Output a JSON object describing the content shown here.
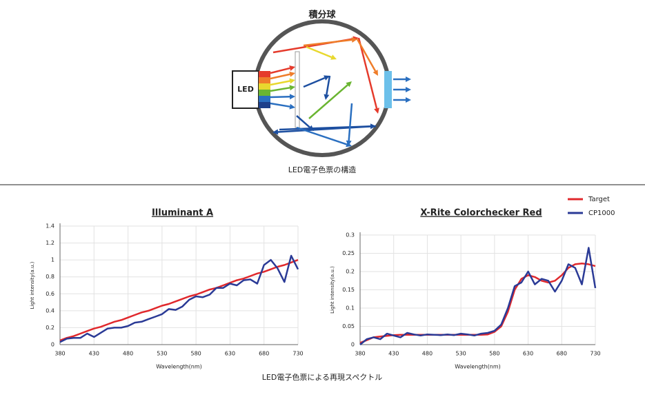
{
  "diagram": {
    "title": "積分球",
    "led_label": "LED",
    "caption": "LED電子色票の構造"
  },
  "caption": "LED電子色票による再現スペクトル",
  "chart_data": [
    {
      "type": "line",
      "title": "Illuminant A",
      "x_label": "Wavelength(nm)",
      "y_label": "Light intensity(a.u.)",
      "x": [
        380,
        390,
        400,
        410,
        420,
        430,
        440,
        450,
        460,
        470,
        480,
        490,
        500,
        510,
        520,
        530,
        540,
        550,
        560,
        570,
        580,
        590,
        600,
        610,
        620,
        630,
        640,
        650,
        660,
        670,
        680,
        690,
        700,
        710,
        720,
        730
      ],
      "series": [
        {
          "name": "Target",
          "color": "#e0282c",
          "values": [
            0.05,
            0.08,
            0.1,
            0.13,
            0.16,
            0.19,
            0.21,
            0.24,
            0.27,
            0.29,
            0.32,
            0.35,
            0.38,
            0.4,
            0.43,
            0.46,
            0.48,
            0.51,
            0.54,
            0.57,
            0.59,
            0.62,
            0.65,
            0.67,
            0.7,
            0.73,
            0.76,
            0.78,
            0.81,
            0.84,
            0.86,
            0.89,
            0.92,
            0.94,
            0.97,
            1.0
          ]
        },
        {
          "name": "CP1000",
          "color": "#2a3a96",
          "values": [
            0.03,
            0.07,
            0.08,
            0.08,
            0.13,
            0.09,
            0.14,
            0.19,
            0.2,
            0.2,
            0.22,
            0.26,
            0.27,
            0.3,
            0.33,
            0.36,
            0.42,
            0.41,
            0.45,
            0.53,
            0.57,
            0.56,
            0.59,
            0.67,
            0.67,
            0.72,
            0.7,
            0.76,
            0.77,
            0.72,
            0.94,
            1.0,
            0.9,
            0.74,
            1.05,
            0.89
          ]
        }
      ],
      "xlim": [
        380,
        730
      ],
      "xticks": [
        380,
        430,
        480,
        530,
        580,
        630,
        680,
        730
      ],
      "ylim": [
        0,
        1.4
      ],
      "yticks": [
        0,
        0.2,
        0.4,
        0.6,
        0.8,
        1,
        1.2,
        1.4
      ],
      "grid": true
    },
    {
      "type": "line",
      "title": "X-Rite Colorchecker Red",
      "x_label": "Wavelength(nm)",
      "y_label": "Light intensity(a.u.)",
      "x": [
        380,
        390,
        400,
        410,
        420,
        430,
        440,
        450,
        460,
        470,
        480,
        490,
        500,
        510,
        520,
        530,
        540,
        550,
        560,
        570,
        580,
        590,
        600,
        610,
        620,
        630,
        640,
        650,
        660,
        670,
        680,
        690,
        700,
        710,
        720,
        730
      ],
      "series": [
        {
          "name": "Target",
          "color": "#e0282c",
          "values": [
            0.005,
            0.012,
            0.02,
            0.022,
            0.024,
            0.026,
            0.027,
            0.027,
            0.027,
            0.027,
            0.027,
            0.027,
            0.027,
            0.027,
            0.027,
            0.027,
            0.027,
            0.027,
            0.027,
            0.028,
            0.035,
            0.05,
            0.09,
            0.15,
            0.18,
            0.19,
            0.185,
            0.175,
            0.17,
            0.175,
            0.19,
            0.21,
            0.22,
            0.222,
            0.22,
            0.215
          ]
        },
        {
          "name": "CP1000",
          "color": "#2a3a96",
          "values": [
            0.0,
            0.015,
            0.02,
            0.015,
            0.03,
            0.025,
            0.02,
            0.032,
            0.028,
            0.025,
            0.028,
            0.027,
            0.026,
            0.028,
            0.026,
            0.03,
            0.028,
            0.025,
            0.03,
            0.032,
            0.038,
            0.055,
            0.1,
            0.16,
            0.17,
            0.2,
            0.165,
            0.18,
            0.175,
            0.145,
            0.175,
            0.22,
            0.21,
            0.165,
            0.265,
            0.155
          ]
        }
      ],
      "xlim": [
        380,
        730
      ],
      "xticks": [
        380,
        430,
        480,
        530,
        580,
        630,
        680,
        730
      ],
      "ylim": [
        0,
        0.3
      ],
      "yticks": [
        0,
        0.05,
        0.1,
        0.15,
        0.2,
        0.25,
        0.3
      ],
      "grid": true
    }
  ]
}
